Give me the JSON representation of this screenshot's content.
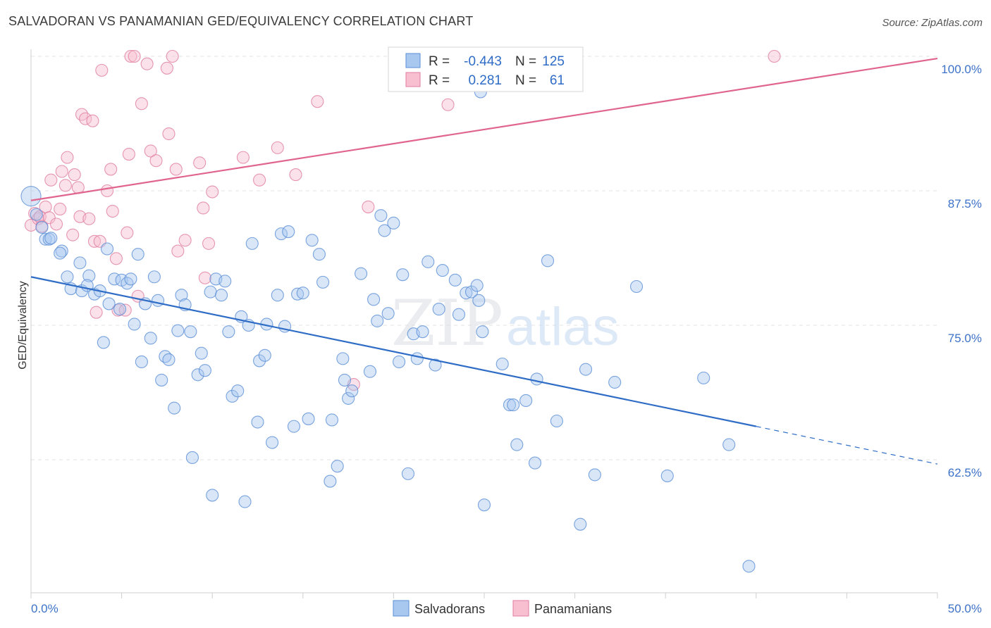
{
  "title": "SALVADORAN VS PANAMANIAN GED/EQUIVALENCY CORRELATION CHART",
  "source": "Source: ZipAtlas.com",
  "watermark": {
    "zip": "ZIP",
    "atlas": "atlas"
  },
  "legend": {
    "rows": [
      {
        "r_label": "R =",
        "r_value": "-0.443",
        "n_label": "N =",
        "n_value": "125",
        "color": "#a9c8f0",
        "stroke": "#5b8fd6"
      },
      {
        "r_label": "R =",
        "r_value": "0.281",
        "n_label": "N =",
        "n_value": "61",
        "color": "#f7bfd0",
        "stroke": "#e07da0"
      }
    ]
  },
  "bottom_legend": [
    {
      "label": "Salvadorans",
      "color": "#a9c8f0",
      "stroke": "#5b8fd6"
    },
    {
      "label": "Panamanians",
      "color": "#f7bfd0",
      "stroke": "#e07da0"
    }
  ],
  "chart_data": {
    "type": "scatter",
    "xlabel": "",
    "ylabel": "GED/Equivalency",
    "xlim": [
      0,
      50
    ],
    "ylim": [
      50,
      101
    ],
    "x_tick_labels": [
      {
        "value": 0,
        "label": "0.0%"
      },
      {
        "value": 50,
        "label": "50.0%"
      }
    ],
    "y_tick_labels": [
      {
        "value": 100,
        "label": "100.0%"
      },
      {
        "value": 87.5,
        "label": "87.5%"
      },
      {
        "value": 75,
        "label": "75.0%"
      },
      {
        "value": 62.5,
        "label": "62.5%"
      }
    ],
    "grid": true,
    "series": [
      {
        "name": "Salvadorans",
        "color": "#a9c8f0",
        "stroke": "#5b8fd6",
        "trend": {
          "x0": 0,
          "y0": 79.5,
          "x1": 40,
          "y1": 65.6,
          "dash_to_x": 50,
          "dash_to_y": 62.1,
          "color": "#2e6cc6"
        },
        "points": [
          [
            0.0,
            87.0
          ],
          [
            0.3,
            85.3
          ],
          [
            0.6,
            84.1
          ],
          [
            0.8,
            83.0
          ],
          [
            1.0,
            83.0
          ],
          [
            1.1,
            83.1
          ],
          [
            1.7,
            81.9
          ],
          [
            1.6,
            81.7
          ],
          [
            2.0,
            79.5
          ],
          [
            2.2,
            78.4
          ],
          [
            2.7,
            80.8
          ],
          [
            3.2,
            79.6
          ],
          [
            2.8,
            78.2
          ],
          [
            3.1,
            78.7
          ],
          [
            3.5,
            77.9
          ],
          [
            3.8,
            78.2
          ],
          [
            4.0,
            73.4
          ],
          [
            4.2,
            82.1
          ],
          [
            4.3,
            77.0
          ],
          [
            4.6,
            79.3
          ],
          [
            4.9,
            76.5
          ],
          [
            5.0,
            79.2
          ],
          [
            5.3,
            78.9
          ],
          [
            5.5,
            79.3
          ],
          [
            5.7,
            75.1
          ],
          [
            5.9,
            81.6
          ],
          [
            6.1,
            71.6
          ],
          [
            6.3,
            77.0
          ],
          [
            6.6,
            73.8
          ],
          [
            6.8,
            79.5
          ],
          [
            7.0,
            77.3
          ],
          [
            7.2,
            69.9
          ],
          [
            7.4,
            72.1
          ],
          [
            7.6,
            71.8
          ],
          [
            7.9,
            67.3
          ],
          [
            8.1,
            74.5
          ],
          [
            8.3,
            77.8
          ],
          [
            8.5,
            76.9
          ],
          [
            8.8,
            74.4
          ],
          [
            8.9,
            62.7
          ],
          [
            9.2,
            70.4
          ],
          [
            9.4,
            72.4
          ],
          [
            9.6,
            70.8
          ],
          [
            9.9,
            78.1
          ],
          [
            10.0,
            59.2
          ],
          [
            10.2,
            79.3
          ],
          [
            10.5,
            77.8
          ],
          [
            10.7,
            79.1
          ],
          [
            10.9,
            74.4
          ],
          [
            11.1,
            68.4
          ],
          [
            11.4,
            68.9
          ],
          [
            11.6,
            75.8
          ],
          [
            11.8,
            58.6
          ],
          [
            12.0,
            75.0
          ],
          [
            12.2,
            82.6
          ],
          [
            12.5,
            66.0
          ],
          [
            12.6,
            71.7
          ],
          [
            12.9,
            72.2
          ],
          [
            13.0,
            75.1
          ],
          [
            13.3,
            64.1
          ],
          [
            13.6,
            77.8
          ],
          [
            13.8,
            83.5
          ],
          [
            14.0,
            74.9
          ],
          [
            14.2,
            83.7
          ],
          [
            14.5,
            65.6
          ],
          [
            14.7,
            77.9
          ],
          [
            15.0,
            78.0
          ],
          [
            15.3,
            66.3
          ],
          [
            15.5,
            82.9
          ],
          [
            15.9,
            81.6
          ],
          [
            16.1,
            79.0
          ],
          [
            16.5,
            60.5
          ],
          [
            16.6,
            66.2
          ],
          [
            16.9,
            61.9
          ],
          [
            17.2,
            71.9
          ],
          [
            17.3,
            69.9
          ],
          [
            17.5,
            68.2
          ],
          [
            17.7,
            68.9
          ],
          [
            18.2,
            79.8
          ],
          [
            18.7,
            70.7
          ],
          [
            18.9,
            77.4
          ],
          [
            19.3,
            85.2
          ],
          [
            19.5,
            83.8
          ],
          [
            19.1,
            75.4
          ],
          [
            19.7,
            76.1
          ],
          [
            20.0,
            84.5
          ],
          [
            20.3,
            71.6
          ],
          [
            20.5,
            79.7
          ],
          [
            20.8,
            61.2
          ],
          [
            21.1,
            74.2
          ],
          [
            21.3,
            71.9
          ],
          [
            21.6,
            74.4
          ],
          [
            21.9,
            80.9
          ],
          [
            22.3,
            71.3
          ],
          [
            22.5,
            76.5
          ],
          [
            22.7,
            80.1
          ],
          [
            23.4,
            79.2
          ],
          [
            23.6,
            76.0
          ],
          [
            24.0,
            78.0
          ],
          [
            24.3,
            78.1
          ],
          [
            24.6,
            78.7
          ],
          [
            24.7,
            77.3
          ],
          [
            24.9,
            74.4
          ],
          [
            24.8,
            96.7
          ],
          [
            25.0,
            58.3
          ],
          [
            26.0,
            71.4
          ],
          [
            26.4,
            67.6
          ],
          [
            26.6,
            67.6
          ],
          [
            26.8,
            63.9
          ],
          [
            27.3,
            68.0
          ],
          [
            27.8,
            62.2
          ],
          [
            27.9,
            70.0
          ],
          [
            28.5,
            81.0
          ],
          [
            29.0,
            66.1
          ],
          [
            30.3,
            56.5
          ],
          [
            30.6,
            70.9
          ],
          [
            31.1,
            61.1
          ],
          [
            32.2,
            69.7
          ],
          [
            33.4,
            78.6
          ],
          [
            35.1,
            61.0
          ],
          [
            37.1,
            70.1
          ],
          [
            38.5,
            63.9
          ],
          [
            39.6,
            52.6
          ]
        ]
      },
      {
        "name": "Panamanians",
        "color": "#f7bfd0",
        "stroke": "#e07da0",
        "trend": {
          "x0": 0,
          "y0": 86.6,
          "x1": 50,
          "y1": 99.8,
          "color": "#e0648e"
        },
        "points": [
          [
            0.0,
            84.3
          ],
          [
            0.2,
            85.4
          ],
          [
            0.4,
            84.9
          ],
          [
            0.5,
            85.1
          ],
          [
            0.6,
            84.2
          ],
          [
            0.8,
            86.0
          ],
          [
            1.0,
            85.0
          ],
          [
            1.1,
            88.5
          ],
          [
            1.4,
            84.4
          ],
          [
            1.6,
            85.8
          ],
          [
            1.7,
            89.3
          ],
          [
            1.9,
            88.0
          ],
          [
            2.0,
            90.6
          ],
          [
            2.3,
            83.4
          ],
          [
            2.4,
            89.0
          ],
          [
            2.6,
            87.8
          ],
          [
            2.7,
            85.1
          ],
          [
            2.8,
            94.6
          ],
          [
            3.0,
            94.2
          ],
          [
            3.2,
            84.9
          ],
          [
            3.4,
            94.0
          ],
          [
            3.5,
            82.8
          ],
          [
            3.6,
            76.2
          ],
          [
            3.8,
            82.8
          ],
          [
            3.9,
            98.7
          ],
          [
            4.2,
            87.5
          ],
          [
            4.4,
            89.5
          ],
          [
            4.5,
            85.6
          ],
          [
            4.7,
            81.2
          ],
          [
            4.8,
            76.4
          ],
          [
            5.2,
            76.4
          ],
          [
            5.3,
            83.6
          ],
          [
            5.4,
            90.9
          ],
          [
            5.5,
            100.0
          ],
          [
            5.7,
            100.0
          ],
          [
            5.9,
            77.7
          ],
          [
            6.1,
            95.6
          ],
          [
            6.4,
            99.3
          ],
          [
            6.6,
            91.2
          ],
          [
            6.9,
            90.3
          ],
          [
            7.5,
            98.9
          ],
          [
            7.6,
            92.8
          ],
          [
            7.8,
            100.0
          ],
          [
            8.0,
            89.5
          ],
          [
            8.1,
            81.9
          ],
          [
            8.5,
            82.9
          ],
          [
            9.3,
            90.1
          ],
          [
            9.5,
            85.9
          ],
          [
            9.6,
            79.4
          ],
          [
            9.8,
            82.6
          ],
          [
            10.0,
            87.4
          ],
          [
            11.7,
            90.6
          ],
          [
            12.6,
            88.5
          ],
          [
            13.6,
            91.5
          ],
          [
            14.6,
            89.0
          ],
          [
            15.8,
            95.8
          ],
          [
            17.8,
            69.5
          ],
          [
            18.6,
            86.0
          ],
          [
            23.0,
            95.5
          ],
          [
            24.0,
            100.0
          ],
          [
            41.0,
            100.0
          ]
        ]
      }
    ]
  }
}
